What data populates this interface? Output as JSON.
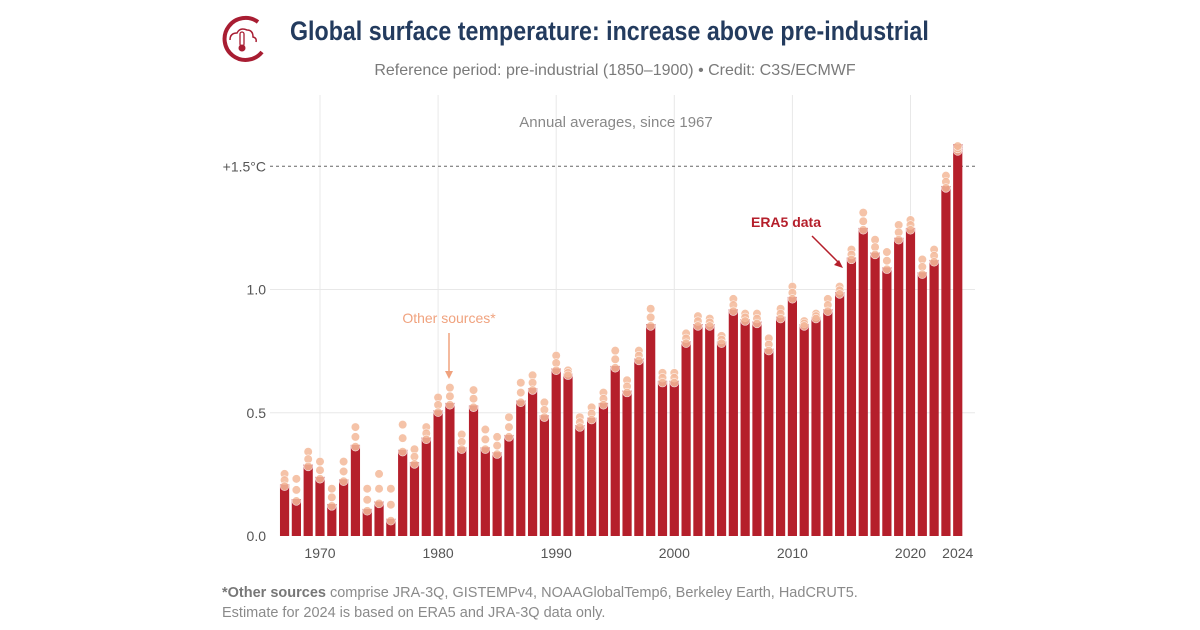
{
  "header": {
    "title": "Global surface temperature: increase above pre-industrial",
    "subtitle": "Reference period: pre-industrial (1850–1900) • Credit: C3S/ECMWF",
    "logo_icon": "thermometer-cloud-logo"
  },
  "chart_data": {
    "type": "bar",
    "title": "Global surface temperature: increase above pre-industrial",
    "annotation_top": "Annual averages, since 1967",
    "x": [
      1967,
      1968,
      1969,
      1970,
      1971,
      1972,
      1973,
      1974,
      1975,
      1976,
      1977,
      1978,
      1979,
      1980,
      1981,
      1982,
      1983,
      1984,
      1985,
      1986,
      1987,
      1988,
      1989,
      1990,
      1991,
      1992,
      1993,
      1994,
      1995,
      1996,
      1997,
      1998,
      1999,
      2000,
      2001,
      2002,
      2003,
      2004,
      2005,
      2006,
      2007,
      2008,
      2009,
      2010,
      2011,
      2012,
      2013,
      2014,
      2015,
      2016,
      2017,
      2018,
      2019,
      2020,
      2021,
      2022,
      2023,
      2024
    ],
    "series": [
      {
        "name": "ERA5 data",
        "color": "#b51f2b",
        "values": [
          0.21,
          0.15,
          0.29,
          0.24,
          0.13,
          0.23,
          0.37,
          0.11,
          0.14,
          0.07,
          0.35,
          0.3,
          0.4,
          0.51,
          0.54,
          0.36,
          0.53,
          0.36,
          0.34,
          0.41,
          0.55,
          0.6,
          0.49,
          0.68,
          0.66,
          0.45,
          0.48,
          0.54,
          0.69,
          0.59,
          0.72,
          0.86,
          0.63,
          0.63,
          0.79,
          0.86,
          0.86,
          0.79,
          0.92,
          0.88,
          0.87,
          0.76,
          0.89,
          0.97,
          0.86,
          0.89,
          0.92,
          0.99,
          1.13,
          1.25,
          1.15,
          1.09,
          1.21,
          1.25,
          1.07,
          1.12,
          1.42,
          1.59
        ]
      },
      {
        "name": "Other sources*",
        "color": "#f4b99a",
        "values": [
          0.26,
          0.24,
          0.35,
          0.31,
          0.2,
          0.31,
          0.45,
          0.2,
          0.26,
          0.2,
          0.46,
          0.36,
          0.45,
          0.57,
          0.61,
          0.42,
          0.6,
          0.44,
          0.41,
          0.49,
          0.63,
          0.66,
          0.55,
          0.74,
          0.68,
          0.49,
          0.53,
          0.59,
          0.76,
          0.64,
          0.76,
          0.93,
          0.67,
          0.67,
          0.83,
          0.9,
          0.89,
          0.82,
          0.97,
          0.91,
          0.91,
          0.81,
          0.93,
          1.02,
          0.88,
          0.91,
          0.97,
          1.02,
          1.17,
          1.32,
          1.21,
          1.16,
          1.27,
          1.29,
          1.13,
          1.17,
          1.47,
          1.57
        ]
      }
    ],
    "ylim": [
      0,
      1.75
    ],
    "yticks": [
      {
        "v": 0,
        "label": "0.0"
      },
      {
        "v": 0.5,
        "label": "0.5"
      },
      {
        "v": 1.0,
        "label": "1.0"
      },
      {
        "v": 1.5,
        "label": "+1.5°C"
      }
    ],
    "xticks": [
      {
        "v": 1970,
        "label": "1970"
      },
      {
        "v": 1980,
        "label": "1980"
      },
      {
        "v": 1990,
        "label": "1990"
      },
      {
        "v": 2000,
        "label": "2000"
      },
      {
        "v": 2010,
        "label": "2010"
      },
      {
        "v": 2020,
        "label": "2020"
      },
      {
        "v": 2024,
        "label": "2024"
      }
    ],
    "threshold": 1.5,
    "grid": true,
    "annotations": [
      {
        "text": "ERA5 data",
        "year": 2015,
        "color": "#b51f2b"
      },
      {
        "text": "Other sources*",
        "year": 1981,
        "color": "#f0a27e"
      }
    ]
  },
  "footer": {
    "bold": "*Other sources",
    "line1": " comprise JRA-3Q, GISTEMPv4, NOAAGlobalTemp6, Berkeley Earth, HadCRUT5.",
    "line2": "Estimate for 2024 is based on ERA5 and JRA-3Q data only."
  }
}
